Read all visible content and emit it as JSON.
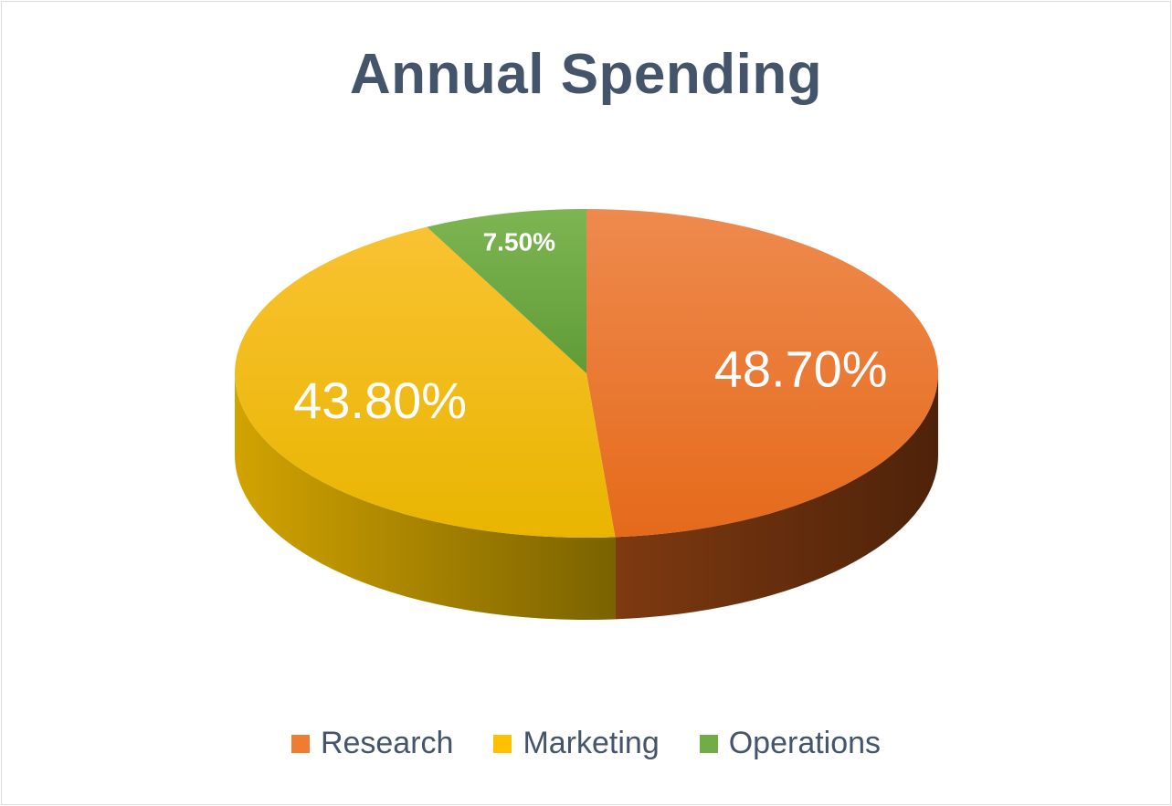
{
  "chart_data": {
    "type": "pie",
    "title": "Annual Spending",
    "three_d": true,
    "legend_position": "bottom",
    "slices": [
      {
        "label": "Research",
        "value": 48.7,
        "display": "48.70%",
        "color": "#ED7D31",
        "side_color": "#6B2F0C"
      },
      {
        "label": "Marketing",
        "value": 43.8,
        "display": "43.80%",
        "color": "#FFC000",
        "side_color": "#9C7A00"
      },
      {
        "label": "Operations",
        "value": 7.5,
        "display": "7.50%",
        "color": "#70AD47",
        "side_color": "#3E6A24"
      }
    ]
  }
}
